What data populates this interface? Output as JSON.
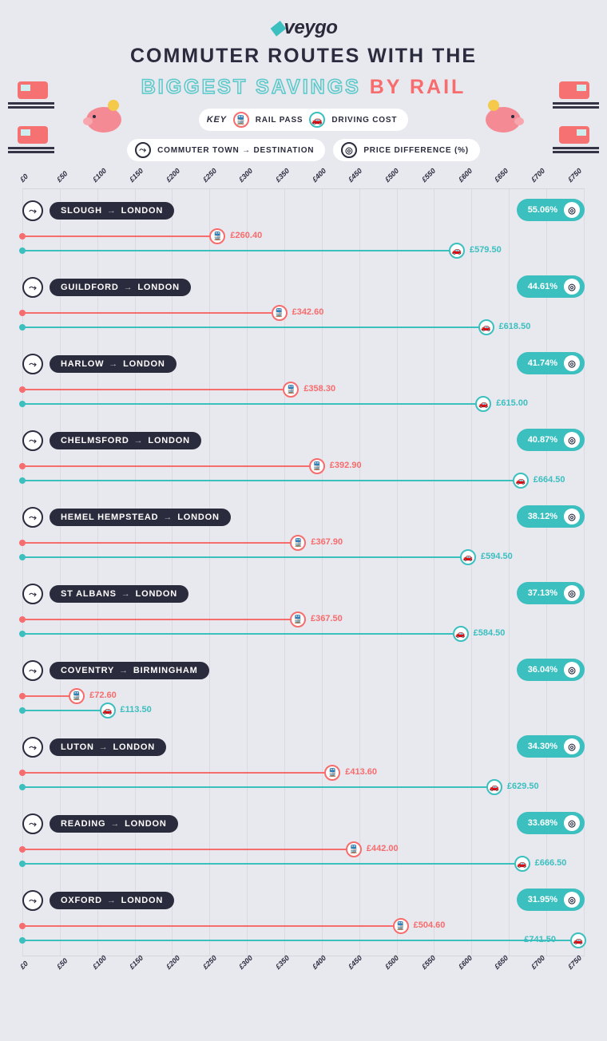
{
  "brand": {
    "name": "veygo"
  },
  "title": {
    "line1": "COMMUTER ROUTES WITH THE",
    "savings": "BIGGEST SAVINGS",
    "by_rail": "BY RAIL"
  },
  "legend": {
    "key_label": "KEY",
    "rail_label": "RAIL PASS",
    "drive_label": "DRIVING COST",
    "route_label": "COMMUTER TOWN → DESTINATION",
    "diff_label": "PRICE DIFFERENCE (%)"
  },
  "chart": {
    "x_min": 0,
    "x_max": 750,
    "x_step": 50,
    "tick_prefix": "£",
    "rail_color": "#f76c6c",
    "drive_color": "#3bbfbf",
    "dark": "#2b2b3e",
    "bg": "#e8e8ef",
    "grid_color": "rgba(0,0,0,0.06)",
    "label_fontsize": 9,
    "value_fontsize": 11
  },
  "routes": [
    {
      "from": "SLOUGH",
      "to": "LONDON",
      "rail": 260.4,
      "drive": 579.5,
      "diff_pct": 55.06
    },
    {
      "from": "GUILDFORD",
      "to": "LONDON",
      "rail": 342.6,
      "drive": 618.5,
      "diff_pct": 44.61
    },
    {
      "from": "HARLOW",
      "to": "LONDON",
      "rail": 358.3,
      "drive": 615.0,
      "diff_pct": 41.74
    },
    {
      "from": "CHELMSFORD",
      "to": "LONDON",
      "rail": 392.9,
      "drive": 664.5,
      "diff_pct": 40.87
    },
    {
      "from": "HEMEL HEMPSTEAD",
      "to": "LONDON",
      "rail": 367.9,
      "drive": 594.5,
      "diff_pct": 38.12
    },
    {
      "from": "ST ALBANS",
      "to": "LONDON",
      "rail": 367.5,
      "drive": 584.5,
      "diff_pct": 37.13
    },
    {
      "from": "COVENTRY",
      "to": "BIRMINGHAM",
      "rail": 72.6,
      "drive": 113.5,
      "diff_pct": 36.04
    },
    {
      "from": "LUTON",
      "to": "LONDON",
      "rail": 413.6,
      "drive": 629.5,
      "diff_pct": 34.3
    },
    {
      "from": "READING",
      "to": "LONDON",
      "rail": 442.0,
      "drive": 666.5,
      "diff_pct": 33.68
    },
    {
      "from": "OXFORD",
      "to": "LONDON",
      "rail": 504.6,
      "drive": 741.5,
      "diff_pct": 31.95
    }
  ]
}
